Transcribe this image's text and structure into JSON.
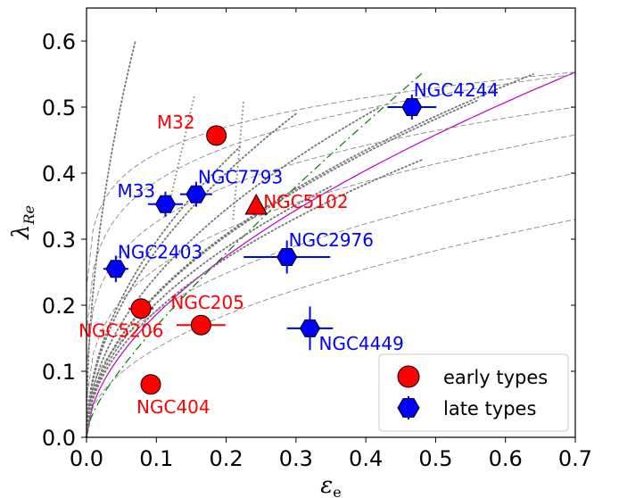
{
  "chart_data": {
    "type": "scatter",
    "xlabel": "ε_e",
    "ylabel": "λ_Re",
    "xlim": [
      0.0,
      0.7
    ],
    "ylim": [
      0.0,
      0.65
    ],
    "x_ticks": [
      "0.0",
      "0.1",
      "0.2",
      "0.3",
      "0.4",
      "0.5",
      "0.6",
      "0.7"
    ],
    "y_ticks": [
      "0.0",
      "0.1",
      "0.2",
      "0.3",
      "0.4",
      "0.5",
      "0.6"
    ],
    "grid": false,
    "legend": {
      "placement": "bottom-right",
      "entries": [
        "early types",
        "late types"
      ]
    },
    "colors": {
      "early": "#ff0000",
      "late": "#0000ff",
      "magenta_curve": "#bf00bf",
      "green_curve": "#008000",
      "grey_curves": "#888888"
    },
    "series": [
      {
        "name": "early types",
        "marker": "circle",
        "points": [
          {
            "label": "M32",
            "x": 0.186,
            "y": 0.457,
            "xerr": 0.0,
            "yerr": 0.0
          },
          {
            "label": "NGC205",
            "x": 0.164,
            "y": 0.17,
            "xerr": 0.035,
            "yerr": 0.0
          },
          {
            "label": "NGC5206",
            "x": 0.078,
            "y": 0.195,
            "xerr": 0.018,
            "yerr": 0.0
          },
          {
            "label": "NGC404",
            "x": 0.092,
            "y": 0.08,
            "xerr": 0.0,
            "yerr": 0.0
          },
          {
            "label": "NGC5102",
            "x": 0.243,
            "y": 0.35,
            "xerr": 0.0,
            "yerr": 0.0,
            "marker": "triangle"
          }
        ]
      },
      {
        "name": "late types",
        "marker": "hexagon",
        "points": [
          {
            "label": "NGC4244",
            "x": 0.466,
            "y": 0.5,
            "xerr": 0.035,
            "yerr": 0.0
          },
          {
            "label": "NGC7793",
            "x": 0.157,
            "y": 0.368,
            "xerr": 0.0,
            "yerr": 0.0
          },
          {
            "label": "M33",
            "x": 0.113,
            "y": 0.353,
            "xerr": 0.025,
            "yerr": 0.0
          },
          {
            "label": "NGC2403",
            "x": 0.042,
            "y": 0.255,
            "xerr": 0.018,
            "yerr": 0.02
          },
          {
            "label": "NGC2976",
            "x": 0.287,
            "y": 0.273,
            "xerr": 0.062,
            "yerr": 0.025
          },
          {
            "label": "NGC4449",
            "x": 0.32,
            "y": 0.165,
            "xerr": 0.033,
            "yerr": 0.033
          }
        ]
      }
    ],
    "curves": {
      "magenta": "edge-on isotropic line ending at (0.7, 0.553)",
      "green": "dash-dot line from (0, 0) to about (0.48, 0.65)"
    }
  }
}
